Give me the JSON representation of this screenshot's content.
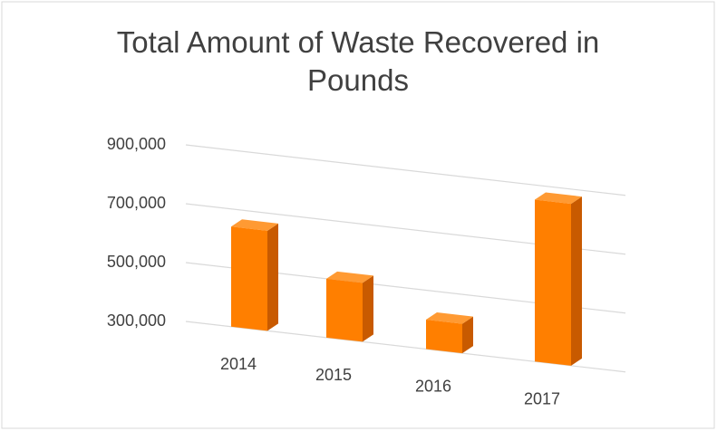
{
  "chart_data": {
    "type": "bar3d",
    "title": "Total Amount of Waste Recovered in Pounds",
    "categories": [
      "2014",
      "2015",
      "2016",
      "2017"
    ],
    "values": [
      640000,
      500000,
      400000,
      850000
    ],
    "color": "#ff7f00",
    "ylim": [
      300000,
      900000
    ],
    "yticks": [
      {
        "value": 300000,
        "label": "300,000"
      },
      {
        "value": 500000,
        "label": "500,000"
      },
      {
        "value": 700000,
        "label": "700,000"
      },
      {
        "value": 900000,
        "label": "900,000"
      }
    ],
    "grid": true
  }
}
